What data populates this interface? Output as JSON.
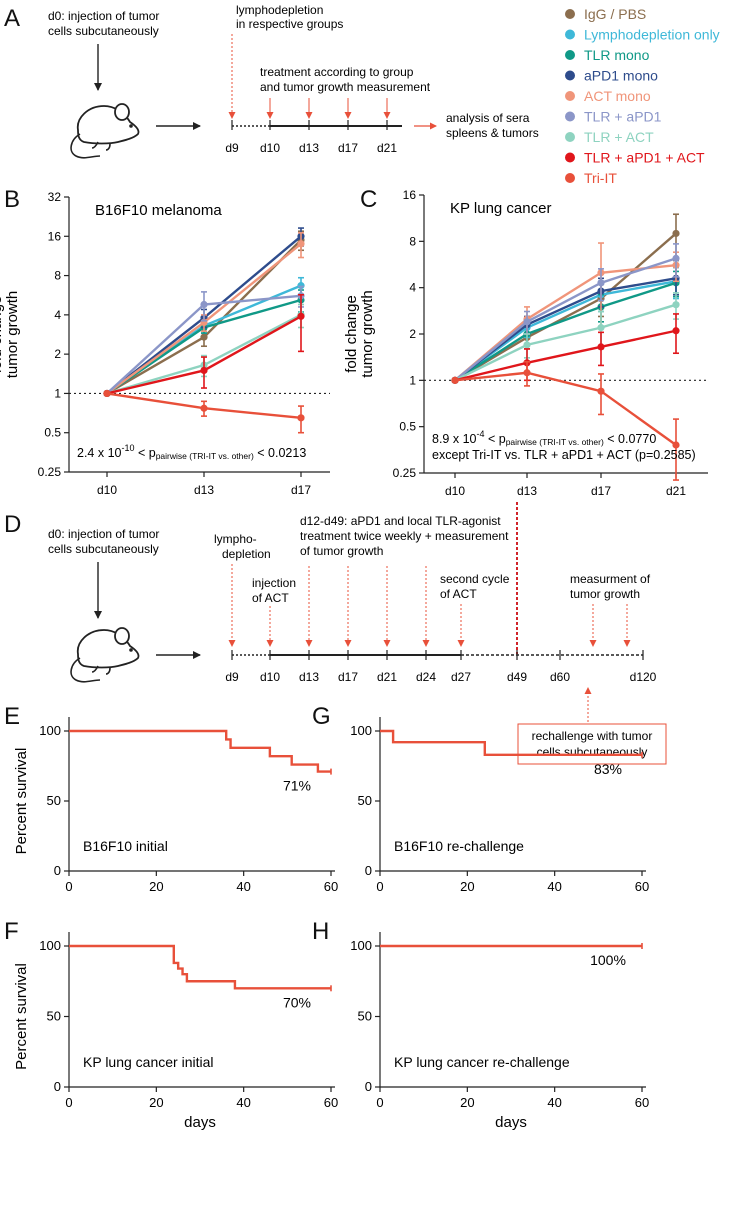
{
  "panel_letters": [
    "A",
    "B",
    "C",
    "D",
    "E",
    "F",
    "G",
    "H"
  ],
  "legend": [
    {
      "name": "IgG / PBS",
      "color": "#8B6E4E"
    },
    {
      "name": "Lymphodepletion only",
      "color": "#3EB8D8"
    },
    {
      "name": "TLR mono",
      "color": "#109987"
    },
    {
      "name": "aPD1 mono",
      "color": "#2E4C8C"
    },
    {
      "name": "ACT mono",
      "color": "#F0957A"
    },
    {
      "name": "TLR + aPD1",
      "color": "#8B96C8"
    },
    {
      "name": "TLR + ACT",
      "color": "#8ED3C0"
    },
    {
      "name": "TLR + aPD1 + ACT",
      "color": "#E0161B"
    },
    {
      "name": "Tri-IT",
      "color": "#E8503A"
    }
  ],
  "scheme_a": {
    "d0_text": [
      "d0: injection of tumor",
      "cells subcutaneously"
    ],
    "lympho_text": [
      "lymphodepletion",
      "in respective groups"
    ],
    "treat_text": [
      "treatment according to group",
      "and tumor growth measurement"
    ],
    "analysis_text": [
      "analysis of sera",
      "spleens & tumors"
    ],
    "days": [
      "d9",
      "d10",
      "d13",
      "d17",
      "d21"
    ]
  },
  "scheme_d": {
    "d0_text": [
      "d0: injection of tumor",
      "cells subcutaneously"
    ],
    "lympho_text": [
      "lympho-",
      "depletion"
    ],
    "act_text": [
      "injection",
      "of ACT"
    ],
    "treat_text": [
      "d12-d49: aPD1 and local TLR-agonist",
      "treatment twice weekly + measurement",
      "of tumor growth"
    ],
    "second_text": [
      "second cycle",
      "of ACT"
    ],
    "measure_text": [
      "measurment of",
      "tumor growth"
    ],
    "rechallenge_text": [
      "rechallenge with tumor",
      "cells subcutaneously"
    ],
    "days": [
      "d9",
      "d10",
      "d13",
      "d17",
      "d21",
      "d24",
      "d27",
      "d49",
      "d60",
      "d120"
    ]
  },
  "common": {
    "y_growth_label": [
      "fold change",
      "tumor growth"
    ],
    "y_survival_label": "Percent survival",
    "x_survival_label": "days"
  },
  "chart_data": [
    {
      "id": "B",
      "type": "line",
      "title": "B16F10 melanoma",
      "scale": "log2",
      "x": [
        "d10",
        "d13",
        "d17"
      ],
      "yticks": [
        "0.25",
        "0.5",
        "1",
        "2",
        "4",
        "8",
        "16",
        "32"
      ],
      "ylim": [
        0.25,
        32
      ],
      "annotation": {
        "pre": "2.4 x 10",
        "exp": "-10",
        "mid": " < p",
        "sub": "pairwise (TRI-IT vs. other)",
        "post": " < 0.0213"
      },
      "series": [
        {
          "name": "IgG / PBS",
          "values": [
            1,
            2.7,
            15
          ],
          "err": [
            0,
            0.4,
            2.5
          ]
        },
        {
          "name": "Lymphodepletion only",
          "values": [
            1,
            3.3,
            6.7
          ],
          "err": [
            0,
            0.4,
            1.0
          ]
        },
        {
          "name": "TLR mono",
          "values": [
            1,
            3.2,
            5.2
          ],
          "err": [
            0,
            0.3,
            1.0
          ]
        },
        {
          "name": "aPD1 mono",
          "values": [
            1,
            3.8,
            16
          ],
          "err": [
            0,
            0.6,
            2.5
          ]
        },
        {
          "name": "ACT mono",
          "values": [
            1,
            3.5,
            14
          ],
          "err": [
            0,
            0.5,
            3.0
          ]
        },
        {
          "name": "TLR + aPD1",
          "values": [
            1,
            4.8,
            5.6
          ],
          "err": [
            0,
            1.2,
            1.0
          ]
        },
        {
          "name": "TLR + ACT",
          "values": [
            1,
            1.65,
            4.0
          ],
          "err": [
            0,
            0.3,
            0.8
          ]
        },
        {
          "name": "TLR + aPD1 + ACT",
          "values": [
            1,
            1.5,
            3.9
          ],
          "err": [
            0,
            0.4,
            1.8
          ]
        },
        {
          "name": "Tri-IT",
          "values": [
            1,
            0.77,
            0.65
          ],
          "err": [
            0,
            0.1,
            0.15
          ]
        }
      ]
    },
    {
      "id": "C",
      "type": "line",
      "title": "KP lung cancer",
      "scale": "log2",
      "x": [
        "d10",
        "d13",
        "d17",
        "d21"
      ],
      "yticks": [
        "0.25",
        "0.5",
        "1",
        "2",
        "4",
        "8",
        "16"
      ],
      "ylim": [
        0.25,
        16
      ],
      "annotation": {
        "pre": "8.9 x 10",
        "exp": "-4",
        "mid": " < p",
        "sub": "pairwise (TRI-IT vs. other)",
        "post": " < 0.0770",
        "line2": "except Tri-IT vs. TLR + aPD1 + ACT (p=0.2585)"
      },
      "series": [
        {
          "name": "IgG / PBS",
          "values": [
            1,
            1.9,
            3.4,
            9.0
          ],
          "err": [
            0,
            0.3,
            0.8,
            3.0
          ]
        },
        {
          "name": "Lymphodepletion only",
          "values": [
            1,
            2.2,
            3.6,
            4.4
          ],
          "err": [
            0,
            0.3,
            0.8,
            1.0
          ]
        },
        {
          "name": "TLR mono",
          "values": [
            1,
            2.0,
            3.0,
            4.3
          ],
          "err": [
            0,
            0.3,
            0.6,
            0.8
          ]
        },
        {
          "name": "aPD1 mono",
          "values": [
            1,
            2.3,
            3.8,
            4.6
          ],
          "err": [
            0,
            0.3,
            0.8,
            1.0
          ]
        },
        {
          "name": "ACT mono",
          "values": [
            1,
            2.5,
            5.0,
            5.6
          ],
          "err": [
            0,
            0.5,
            2.8,
            1.2
          ]
        },
        {
          "name": "TLR + aPD1",
          "values": [
            1,
            2.4,
            4.3,
            6.2
          ],
          "err": [
            0,
            0.4,
            1.0,
            1.5
          ]
        },
        {
          "name": "TLR + ACT",
          "values": [
            1,
            1.7,
            2.2,
            3.1
          ],
          "err": [
            0,
            0.3,
            0.6,
            0.6
          ]
        },
        {
          "name": "TLR + aPD1 + ACT",
          "values": [
            1,
            1.3,
            1.65,
            2.1
          ],
          "err": [
            0,
            0.3,
            0.4,
            0.6
          ]
        },
        {
          "name": "Tri-IT",
          "values": [
            1,
            1.12,
            0.85,
            0.38
          ],
          "err": [
            0,
            0.2,
            0.25,
            0.18
          ]
        }
      ]
    },
    {
      "id": "E",
      "type": "line",
      "subtype": "survival",
      "title": "B16F10 initial",
      "label": "71%",
      "xlim": [
        0,
        60
      ],
      "xticks": [
        "0",
        "20",
        "40",
        "60"
      ],
      "yticks": [
        "0",
        "50",
        "100"
      ],
      "ylim": [
        0,
        100
      ],
      "steps": [
        [
          0,
          100
        ],
        [
          36,
          100
        ],
        [
          36,
          94
        ],
        [
          37,
          94
        ],
        [
          37,
          88
        ],
        [
          46,
          88
        ],
        [
          46,
          82
        ],
        [
          51,
          82
        ],
        [
          51,
          76
        ],
        [
          57,
          76
        ],
        [
          57,
          71
        ],
        [
          60,
          71
        ]
      ]
    },
    {
      "id": "G",
      "type": "line",
      "subtype": "survival",
      "title": "B16F10 re-challenge",
      "label": "83%",
      "xlim": [
        0,
        60
      ],
      "xticks": [
        "0",
        "20",
        "40",
        "60"
      ],
      "yticks": [
        "0",
        "50",
        "100"
      ],
      "ylim": [
        0,
        100
      ],
      "steps": [
        [
          0,
          100
        ],
        [
          3,
          100
        ],
        [
          3,
          92
        ],
        [
          24,
          92
        ],
        [
          24,
          83
        ],
        [
          60,
          83
        ]
      ]
    },
    {
      "id": "F",
      "type": "line",
      "subtype": "survival",
      "title": "KP lung cancer initial",
      "label": "70%",
      "xlim": [
        0,
        60
      ],
      "xticks": [
        "0",
        "20",
        "40",
        "60"
      ],
      "yticks": [
        "0",
        "50",
        "100"
      ],
      "ylim": [
        0,
        100
      ],
      "steps": [
        [
          0,
          100
        ],
        [
          24,
          100
        ],
        [
          24,
          88
        ],
        [
          25,
          88
        ],
        [
          25,
          84
        ],
        [
          26,
          84
        ],
        [
          26,
          80
        ],
        [
          27,
          80
        ],
        [
          27,
          75
        ],
        [
          38,
          75
        ],
        [
          38,
          70
        ],
        [
          60,
          70
        ]
      ]
    },
    {
      "id": "H",
      "type": "line",
      "subtype": "survival",
      "title": "KP lung cancer re-challenge",
      "label": "100%",
      "xlim": [
        0,
        60
      ],
      "xticks": [
        "0",
        "20",
        "40",
        "60"
      ],
      "yticks": [
        "0",
        "50",
        "100"
      ],
      "ylim": [
        0,
        100
      ],
      "steps": [
        [
          0,
          100
        ],
        [
          60,
          100
        ]
      ]
    }
  ]
}
